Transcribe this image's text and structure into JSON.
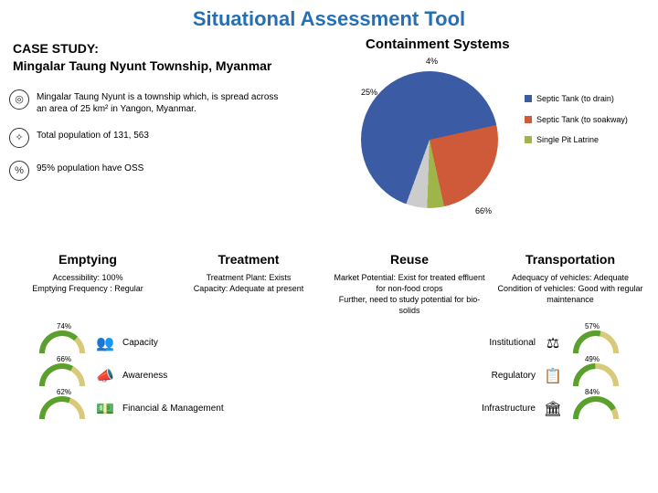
{
  "title": "Situational Assessment Tool",
  "case_study": {
    "heading": "CASE STUDY:",
    "subheading": "Mingalar Taung Nyunt Township, Myanmar"
  },
  "bullets": [
    {
      "icon": "◎",
      "text": "Mingalar Taung Nyunt is a township which, is spread across an area of 25 km² in Yangon, Myanmar."
    },
    {
      "icon": "✧",
      "text": "Total population of 131, 563"
    },
    {
      "icon": "%",
      "text": "95% population have OSS"
    }
  ],
  "containment": {
    "title": "Containment Systems",
    "slices": [
      {
        "label": "Septic Tank (to drain)",
        "value": 66,
        "color": "#3b5ba5"
      },
      {
        "label": "Septic Tank (to soakway)",
        "value": 25,
        "color": "#cf5a3a"
      },
      {
        "label": "Single Pit Latrine",
        "value": 4,
        "color": "#9fb54a"
      }
    ],
    "labels": {
      "a": "66%",
      "b": "25%",
      "c": "4%"
    }
  },
  "columns": [
    {
      "title": "Emptying",
      "body": "Accessibility: 100%\nEmptying Frequency : Regular"
    },
    {
      "title": "Treatment",
      "body": "Treatment Plant: Exists\nCapacity: Adequate at present"
    },
    {
      "title": "Reuse",
      "body": "Market Potential: Exist for treated effluent for non-food crops\nFurther, need to study potential for bio-solids"
    },
    {
      "title": "Transportation",
      "body": "Adequacy of vehicles: Adequate\nCondition of vehicles: Good with regular maintenance"
    }
  ],
  "gauges_left": [
    {
      "pct": "74%",
      "value": 74,
      "label": "Capacity",
      "icon": "👥"
    },
    {
      "pct": "66%",
      "value": 66,
      "label": "Awareness",
      "icon": "📣"
    },
    {
      "pct": "62%",
      "value": 62,
      "label": "Financial & Management",
      "icon": "💵"
    }
  ],
  "gauges_right": [
    {
      "pct": "57%",
      "value": 57,
      "label": "Institutional",
      "icon": "⚖"
    },
    {
      "pct": "49%",
      "value": 49,
      "label": "Regulatory",
      "icon": "📋"
    },
    {
      "pct": "84%",
      "value": 84,
      "label": "Infrastructure",
      "icon": "🏛"
    }
  ],
  "gauge_colors": {
    "track": "#d9c97a",
    "fill": "#5aa02c"
  }
}
